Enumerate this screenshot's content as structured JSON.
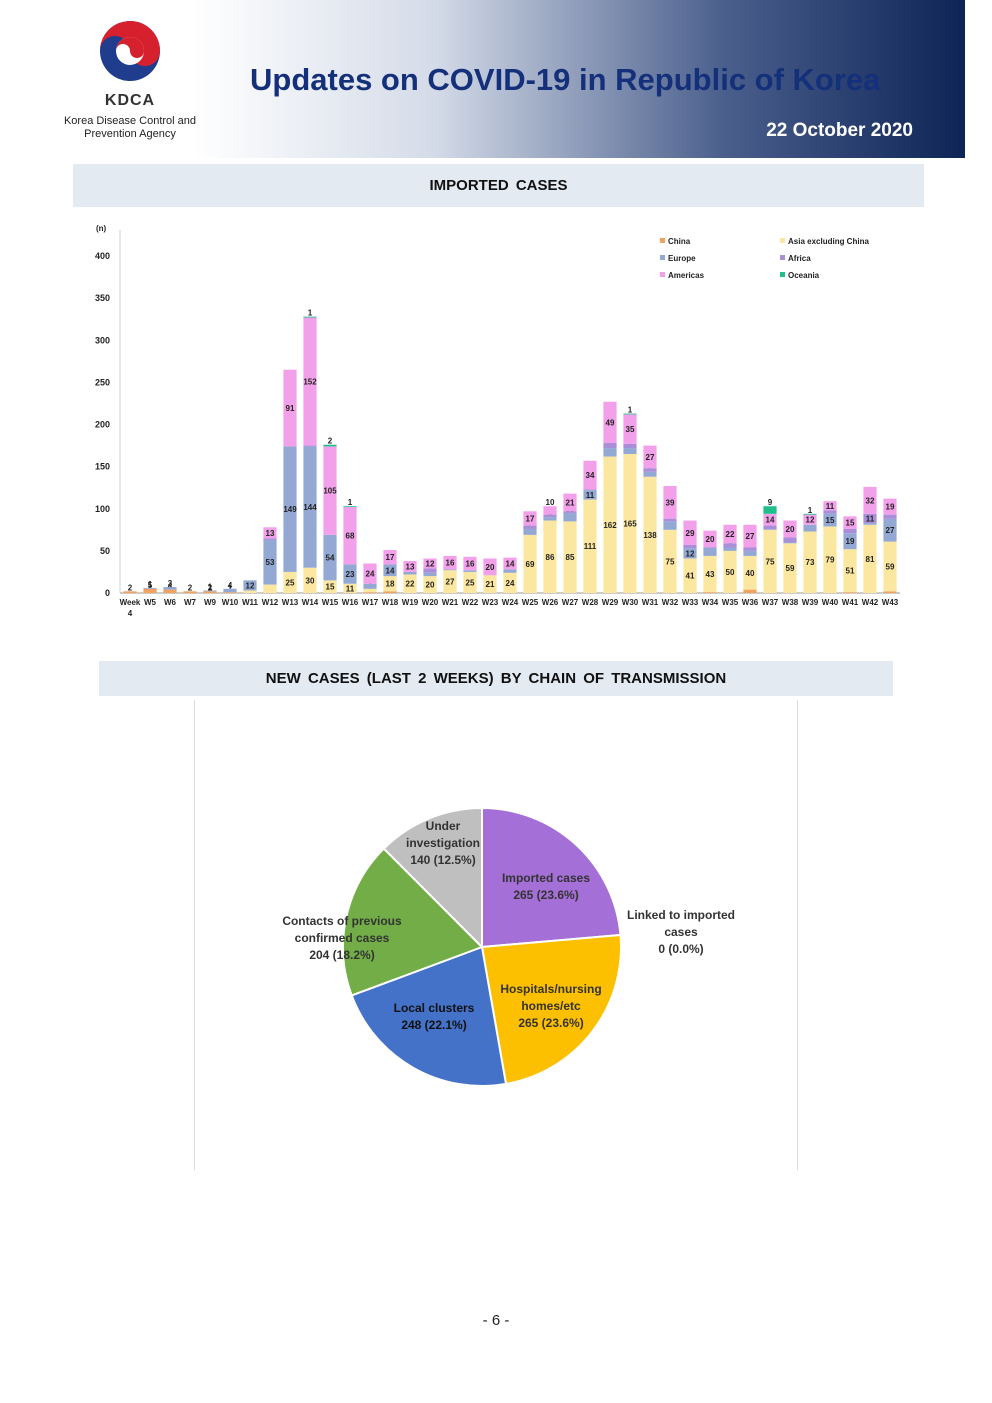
{
  "header": {
    "org_abbr": "KDCA",
    "org_name_line1": "Korea Disease Control and",
    "org_name_line2": "Prevention Agency",
    "title": "Updates on COVID-19 in Republic of Korea",
    "date": "22 October 2020"
  },
  "sections": {
    "imported_title": "IMPORTED CASES",
    "chain_title": "NEW CASES (LAST 2 WEEKS) BY CHAIN OF TRANSMISSION"
  },
  "page_number": "- 6 -",
  "colors": {
    "china": "#f2a25c",
    "asia": "#fbe7a0",
    "europe": "#93a9d4",
    "africa": "#a98ed8",
    "americas": "#f3a0ea",
    "oceania": "#1fbf8c",
    "title_blue": "#14307a",
    "section_bg": "#e3eaf2"
  },
  "chart_data": [
    {
      "type": "bar",
      "stacked": true,
      "title": "",
      "ylabel": "(n)",
      "ylim": [
        0,
        400
      ],
      "yticks": [
        0,
        50,
        100,
        150,
        200,
        250,
        300,
        350,
        400
      ],
      "legend_position": "top-right",
      "categories": [
        "Week 4",
        "W5",
        "W6",
        "W7",
        "W9",
        "W10",
        "W11",
        "W12",
        "W13",
        "W14",
        "W15",
        "W16",
        "W17",
        "W18",
        "W19",
        "W20",
        "W21",
        "W22",
        "W23",
        "W24",
        "W25",
        "W26",
        "W27",
        "W28",
        "W29",
        "W30",
        "W31",
        "W32",
        "W33",
        "W34",
        "W35",
        "W36",
        "W37",
        "W38",
        "W39",
        "W40",
        "W41",
        "W42",
        "W43"
      ],
      "series": [
        {
          "name": "China",
          "color": "#f2a25c",
          "values": [
            2,
            5,
            4,
            2,
            2,
            1,
            0,
            0,
            0,
            0,
            0,
            0,
            1,
            2,
            0,
            0,
            0,
            0,
            0,
            0,
            0,
            0,
            0,
            0,
            0,
            0,
            0,
            0,
            0,
            1,
            0,
            4,
            0,
            0,
            0,
            0,
            1,
            0,
            2
          ]
        },
        {
          "name": "Asia excluding China",
          "color": "#fbe7a0",
          "values": [
            0,
            0,
            0,
            0,
            0,
            0,
            3,
            10,
            25,
            30,
            15,
            11,
            4,
            18,
            22,
            20,
            27,
            25,
            21,
            24,
            69,
            86,
            85,
            111,
            162,
            165,
            138,
            75,
            41,
            43,
            50,
            40,
            75,
            59,
            73,
            79,
            51,
            81,
            59
          ]
        },
        {
          "name": "Europe",
          "color": "#93a9d4",
          "values": [
            0,
            1,
            3,
            0,
            1,
            4,
            12,
            53,
            149,
            144,
            54,
            23,
            6,
            14,
            3,
            4,
            1,
            2,
            0,
            4,
            7,
            4,
            10,
            11,
            10,
            7,
            6,
            10,
            12,
            10,
            4,
            6,
            1,
            1,
            8,
            15,
            19,
            2,
            27
          ]
        },
        {
          "name": "Africa",
          "color": "#a98ed8",
          "values": [
            0,
            0,
            0,
            0,
            0,
            0,
            0,
            2,
            0,
            1,
            0,
            0,
            0,
            0,
            0,
            5,
            0,
            0,
            0,
            0,
            4,
            3,
            2,
            1,
            6,
            5,
            4,
            3,
            4,
            0,
            5,
            4,
            4,
            6,
            0,
            4,
            5,
            11,
            5
          ]
        },
        {
          "name": "Americas",
          "color": "#f3a0ea",
          "values": [
            0,
            0,
            0,
            0,
            0,
            0,
            0,
            13,
            91,
            152,
            105,
            68,
            24,
            17,
            13,
            12,
            16,
            16,
            20,
            14,
            17,
            10,
            21,
            34,
            49,
            35,
            27,
            39,
            29,
            20,
            22,
            27,
            14,
            20,
            12,
            11,
            15,
            32,
            19
          ]
        },
        {
          "name": "Oceania",
          "color": "#1fbf8c",
          "values": [
            0,
            0,
            0,
            0,
            0,
            0,
            0,
            0,
            0,
            1,
            2,
            1,
            0,
            0,
            0,
            0,
            0,
            0,
            0,
            0,
            0,
            0,
            0,
            0,
            0,
            1,
            0,
            0,
            0,
            0,
            0,
            0,
            9,
            0,
            1,
            0,
            0,
            0,
            0
          ]
        }
      ]
    },
    {
      "type": "pie",
      "title": "",
      "slices": [
        {
          "label_line1": "Imported cases",
          "label_line2": "",
          "value_text": "265 (23.6%)",
          "value": 265,
          "percent": 23.6,
          "color": "#a46fd6"
        },
        {
          "label_line1": "Linked to imported",
          "label_line2": "cases",
          "value_text": "0 (0.0%)",
          "value": 0,
          "percent": 0.0,
          "color": "#b0c4e0"
        },
        {
          "label_line1": "Hospitals/nursing",
          "label_line2": "homes/etc",
          "value_text": "265 (23.6%)",
          "value": 265,
          "percent": 23.6,
          "color": "#fcc000"
        },
        {
          "label_line1": "Local clusters",
          "label_line2": "",
          "value_text": "248 (22.1%)",
          "value": 248,
          "percent": 22.1,
          "color": "#4472c8"
        },
        {
          "label_line1": "Contacts of previous",
          "label_line2": "confirmed cases",
          "value_text": "204 (18.2%)",
          "value": 204,
          "percent": 18.2,
          "color": "#72ad47"
        },
        {
          "label_line1": "Under",
          "label_line2": "investigation",
          "value_text": "140 (12.5%)",
          "value": 140,
          "percent": 12.5,
          "color": "#bfbfbf"
        }
      ]
    }
  ]
}
